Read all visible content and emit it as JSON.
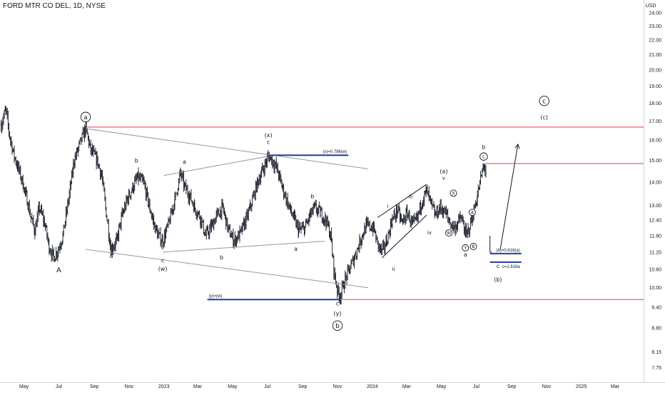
{
  "header": {
    "title": "FORD MTR CO DEL, 1D, NYSE"
  },
  "chart_data": {
    "type": "candlestick",
    "symbol": "FORD MTR CO DEL",
    "interval": "1D",
    "exchange": "NYSE",
    "currency": "USD",
    "y_scale": "log",
    "ylim": [
      7.4,
      25.0
    ],
    "y_ticks": [
      7.75,
      8.15,
      8.8,
      9.4,
      10.0,
      10.6,
      11.2,
      11.8,
      12.4,
      13.0,
      14.0,
      15.0,
      16.0,
      17.0,
      18.0,
      19.0,
      20.0,
      21.0,
      22.0,
      23.0,
      24.0
    ],
    "y_tick_labels": [
      "7.75",
      "8.15",
      "8.80",
      "9.40",
      "10.00",
      "10.60",
      "11.20",
      "11.80",
      "12.40",
      "13.00",
      "14.00",
      "15.00",
      "16.00",
      "17.00",
      "18.00",
      "19.00",
      "20.00",
      "21.00",
      "22.00",
      "23.00",
      "24.00"
    ],
    "x_ticks": [
      {
        "label": "May",
        "x": "2022-05-01"
      },
      {
        "label": "Jul",
        "x": "2022-07-01"
      },
      {
        "label": "Sep",
        "x": "2022-09-01"
      },
      {
        "label": "Nov",
        "x": "2022-11-01"
      },
      {
        "label": "2023",
        "x": "2023-01-01"
      },
      {
        "label": "Mar",
        "x": "2023-03-01"
      },
      {
        "label": "May",
        "x": "2023-05-01"
      },
      {
        "label": "Jul",
        "x": "2023-07-01"
      },
      {
        "label": "Sep",
        "x": "2023-09-01"
      },
      {
        "label": "Nov",
        "x": "2023-11-01"
      },
      {
        "label": "2024",
        "x": "2024-01-01"
      },
      {
        "label": "Mar",
        "x": "2024-03-01"
      },
      {
        "label": "May",
        "x": "2024-05-01"
      },
      {
        "label": "Jul",
        "x": "2024-07-01"
      },
      {
        "label": "Sep",
        "x": "2024-09-01"
      },
      {
        "label": "Nov",
        "x": "2024-11-01"
      },
      {
        "label": "2025",
        "x": "2025-01-01"
      },
      {
        "label": "Mar",
        "x": "2025-03-01"
      }
    ],
    "xlim": [
      "2022-03-20",
      "2025-04-20"
    ],
    "price_path": [
      [
        "2022-03-22",
        16.8
      ],
      [
        "2022-03-30",
        17.6
      ],
      [
        "2022-04-06",
        16.2
      ],
      [
        "2022-04-14",
        15.2
      ],
      [
        "2022-04-25",
        14.3
      ],
      [
        "2022-05-05",
        13.4
      ],
      [
        "2022-05-12",
        12.6
      ],
      [
        "2022-05-20",
        12.0
      ],
      [
        "2022-05-28",
        12.9
      ],
      [
        "2022-06-06",
        12.3
      ],
      [
        "2022-06-14",
        11.4
      ],
      [
        "2022-06-22",
        11.0
      ],
      [
        "2022-06-30",
        11.3
      ],
      [
        "2022-07-08",
        11.8
      ],
      [
        "2022-07-18",
        13.2
      ],
      [
        "2022-07-28",
        15.0
      ],
      [
        "2022-08-08",
        15.9
      ],
      [
        "2022-08-17",
        16.6
      ],
      [
        "2022-08-26",
        15.5
      ],
      [
        "2022-09-06",
        15.0
      ],
      [
        "2022-09-14",
        14.3
      ],
      [
        "2022-09-22",
        12.7
      ],
      [
        "2022-09-30",
        11.3
      ],
      [
        "2022-10-10",
        11.6
      ],
      [
        "2022-10-20",
        12.6
      ],
      [
        "2022-10-30",
        13.3
      ],
      [
        "2022-11-08",
        13.8
      ],
      [
        "2022-11-16",
        14.2
      ],
      [
        "2022-11-26",
        14.0
      ],
      [
        "2022-12-06",
        13.0
      ],
      [
        "2022-12-15",
        12.2
      ],
      [
        "2022-12-22",
        11.8
      ],
      [
        "2022-12-30",
        11.6
      ],
      [
        "2023-01-10",
        12.3
      ],
      [
        "2023-01-20",
        13.2
      ],
      [
        "2023-01-30",
        14.4
      ],
      [
        "2023-02-06",
        13.8
      ],
      [
        "2023-02-15",
        13.4
      ],
      [
        "2023-02-24",
        12.9
      ],
      [
        "2023-03-06",
        12.5
      ],
      [
        "2023-03-15",
        11.8
      ],
      [
        "2023-03-24",
        12.1
      ],
      [
        "2023-04-04",
        12.6
      ],
      [
        "2023-04-14",
        12.9
      ],
      [
        "2023-04-24",
        12.0
      ],
      [
        "2023-05-04",
        11.6
      ],
      [
        "2023-05-15",
        11.9
      ],
      [
        "2023-05-25",
        12.4
      ],
      [
        "2023-06-05",
        13.2
      ],
      [
        "2023-06-14",
        14.0
      ],
      [
        "2023-06-24",
        14.6
      ],
      [
        "2023-07-03",
        15.2
      ],
      [
        "2023-07-10",
        15.0
      ],
      [
        "2023-07-18",
        14.6
      ],
      [
        "2023-07-27",
        13.8
      ],
      [
        "2023-08-07",
        13.0
      ],
      [
        "2023-08-16",
        12.5
      ],
      [
        "2023-08-25",
        12.0
      ],
      [
        "2023-09-05",
        12.1
      ],
      [
        "2023-09-14",
        12.6
      ],
      [
        "2023-09-22",
        12.9
      ],
      [
        "2023-10-02",
        12.7
      ],
      [
        "2023-10-12",
        12.4
      ],
      [
        "2023-10-20",
        11.8
      ],
      [
        "2023-10-26",
        10.5
      ],
      [
        "2023-11-01",
        9.9
      ],
      [
        "2023-11-06",
        9.75
      ],
      [
        "2023-11-13",
        10.2
      ],
      [
        "2023-11-22",
        10.6
      ],
      [
        "2023-12-04",
        11.2
      ],
      [
        "2023-12-14",
        11.8
      ],
      [
        "2023-12-22",
        12.2
      ],
      [
        "2024-01-03",
        12.1
      ],
      [
        "2024-01-10",
        11.5
      ],
      [
        "2024-01-18",
        11.2
      ],
      [
        "2024-01-26",
        11.6
      ],
      [
        "2024-02-05",
        12.4
      ],
      [
        "2024-02-14",
        12.8
      ],
      [
        "2024-02-22",
        12.3
      ],
      [
        "2024-03-02",
        12.7
      ],
      [
        "2024-03-12",
        12.2
      ],
      [
        "2024-03-20",
        12.5
      ],
      [
        "2024-03-28",
        13.2
      ],
      [
        "2024-04-05",
        13.6
      ],
      [
        "2024-04-12",
        13.1
      ],
      [
        "2024-04-20",
        12.6
      ],
      [
        "2024-04-29",
        12.9
      ],
      [
        "2024-05-08",
        12.7
      ],
      [
        "2024-05-16",
        12.3
      ],
      [
        "2024-05-24",
        12.1
      ],
      [
        "2024-06-04",
        12.5
      ],
      [
        "2024-06-14",
        11.8
      ],
      [
        "2024-06-24",
        12.5
      ],
      [
        "2024-07-03",
        13.4
      ],
      [
        "2024-07-10",
        14.3
      ],
      [
        "2024-07-15",
        14.8
      ],
      [
        "2024-07-19",
        14.2
      ]
    ],
    "last_segment": [
      [
        "2024-07-25",
        11.8
      ],
      [
        "2024-07-28",
        11.2
      ]
    ],
    "horizontal_levels": [
      {
        "price": 16.68,
        "label": "16.68",
        "color": "#f23645",
        "from": "2022-08-20"
      },
      {
        "price": 14.85,
        "label": "14.85",
        "color": "#f23645",
        "from": "2024-07-17"
      },
      {
        "price": 9.63,
        "label": "9.63",
        "color": "#f23645",
        "from": "2023-11-06"
      }
    ],
    "fib_lines": [
      {
        "price": 15.25,
        "from": "2023-07-05",
        "to": "2023-11-20",
        "label": "(x)=0.786(w)",
        "color": "#1e3ca8"
      },
      {
        "price": 9.63,
        "from": "2023-03-18",
        "to": "2023-11-06",
        "label": "(y)=(w)",
        "color": "#1e3ca8"
      },
      {
        "price": 11.15,
        "from": "2024-07-25",
        "to": "2024-09-18",
        "label": "(b)=0.618(a)",
        "color": "#1e3ca8"
      },
      {
        "price": 10.85,
        "from": "2024-07-25",
        "to": "2024-09-18",
        "label": "c=1.618a",
        "color": "#1e3ca8"
      }
    ],
    "channel_lines": [
      {
        "from": [
          "2022-08-17",
          16.6
        ],
        "to": [
          "2023-12-25",
          14.6
        ]
      },
      {
        "from": [
          "2022-08-17",
          11.3
        ],
        "to": [
          "2023-12-25",
          10.0
        ]
      },
      {
        "from": [
          "2022-12-30",
          11.2
        ],
        "to": [
          "2023-10-10",
          11.6
        ]
      },
      {
        "from": [
          "2023-01-01",
          14.3
        ],
        "to": [
          "2023-07-03",
          15.2
        ]
      }
    ],
    "triangle_lines": [
      {
        "from": [
          "2024-01-10",
          12.5
        ],
        "to": [
          "2024-04-05",
          13.9
        ]
      },
      {
        "from": [
          "2024-01-18",
          11.0
        ],
        "to": [
          "2024-04-05",
          12.6
        ]
      }
    ],
    "projection_arrow": {
      "from": [
        "2024-08-12",
        11.3
      ],
      "to": [
        "2024-09-12",
        15.8
      ]
    },
    "wave_labels": [
      {
        "text": "A",
        "at": [
          "2022-07-01",
          10.5
        ],
        "circled": false,
        "size": 10
      },
      {
        "text": "a",
        "at": [
          "2022-08-17",
          17.1
        ],
        "circled": true,
        "size": 9
      },
      {
        "text": "a",
        "at": [
          "2022-10-01",
          11.0
        ],
        "circled": false,
        "size": 8
      },
      {
        "text": "b",
        "at": [
          "2022-11-14",
          14.9
        ],
        "circled": false,
        "size": 8
      },
      {
        "text": "c",
        "at": [
          "2022-12-30",
          10.85
        ],
        "circled": false,
        "size": 8
      },
      {
        "text": "(w)",
        "at": [
          "2022-12-30",
          10.55
        ],
        "circled": false,
        "size": 8
      },
      {
        "text": "a",
        "at": [
          "2023-02-06",
          14.85
        ],
        "circled": false,
        "size": 8
      },
      {
        "text": "b",
        "at": [
          "2023-04-12",
          10.95
        ],
        "circled": false,
        "size": 8
      },
      {
        "text": "(x)",
        "at": [
          "2023-07-03",
          16.15
        ],
        "circled": false,
        "size": 8
      },
      {
        "text": "c",
        "at": [
          "2023-07-03",
          15.8
        ],
        "circled": false,
        "size": 8
      },
      {
        "text": "a",
        "at": [
          "2023-08-20",
          11.25
        ],
        "circled": false,
        "size": 8
      },
      {
        "text": "b",
        "at": [
          "2023-09-18",
          13.3
        ],
        "circled": false,
        "size": 8
      },
      {
        "text": "c",
        "at": [
          "2023-11-01",
          9.45
        ],
        "circled": false,
        "size": 8
      },
      {
        "text": "(y)",
        "at": [
          "2023-11-01",
          9.15
        ],
        "circled": false,
        "size": 8
      },
      {
        "text": "b",
        "at": [
          "2023-11-01",
          8.8
        ],
        "circled": true,
        "size": 9
      },
      {
        "text": "i",
        "at": [
          "2024-01-28",
          12.9
        ],
        "circled": false,
        "size": 7
      },
      {
        "text": "ii",
        "at": [
          "2024-02-07",
          10.55
        ],
        "circled": false,
        "size": 7
      },
      {
        "text": "iii",
        "at": [
          "2024-03-08",
          13.3
        ],
        "circled": false,
        "size": 7
      },
      {
        "text": "iv",
        "at": [
          "2024-04-10",
          11.85
        ],
        "circled": false,
        "size": 7
      },
      {
        "text": "(a)",
        "at": [
          "2024-05-05",
          14.4
        ],
        "circled": false,
        "size": 8
      },
      {
        "text": "v",
        "at": [
          "2024-05-05",
          14.1
        ],
        "circled": false,
        "size": 7
      },
      {
        "text": "X",
        "at": [
          "2024-05-22",
          13.45
        ],
        "circled": true,
        "size": 6
      },
      {
        "text": "W",
        "at": [
          "2024-05-14",
          11.85
        ],
        "circled": true,
        "size": 6
      },
      {
        "text": "Y",
        "at": [
          "2024-06-12",
          11.3
        ],
        "circled": true,
        "size": 6
      },
      {
        "text": "a",
        "at": [
          "2024-06-12",
          11.05
        ],
        "circled": false,
        "size": 8
      },
      {
        "text": "A",
        "at": [
          "2024-06-24",
          12.65
        ],
        "circled": true,
        "size": 6
      },
      {
        "text": "B",
        "at": [
          "2024-06-26",
          11.35
        ],
        "circled": true,
        "size": 6
      },
      {
        "text": "b",
        "at": [
          "2024-07-14",
          15.55
        ],
        "circled": false,
        "size": 8
      },
      {
        "text": "c",
        "at": [
          "2024-07-14",
          15.1
        ],
        "circled": true,
        "size": 7
      },
      {
        "text": "c",
        "at": [
          "2024-08-08",
          10.65
        ],
        "circled": false,
        "size": 8
      },
      {
        "text": "(b)",
        "at": [
          "2024-08-08",
          10.2
        ],
        "circled": false,
        "size": 8
      },
      {
        "text": "c",
        "at": [
          "2024-10-28",
          18.0
        ],
        "circled": true,
        "size": 9
      },
      {
        "text": "(c)",
        "at": [
          "2024-10-28",
          17.1
        ],
        "circled": false,
        "size": 8
      }
    ]
  }
}
